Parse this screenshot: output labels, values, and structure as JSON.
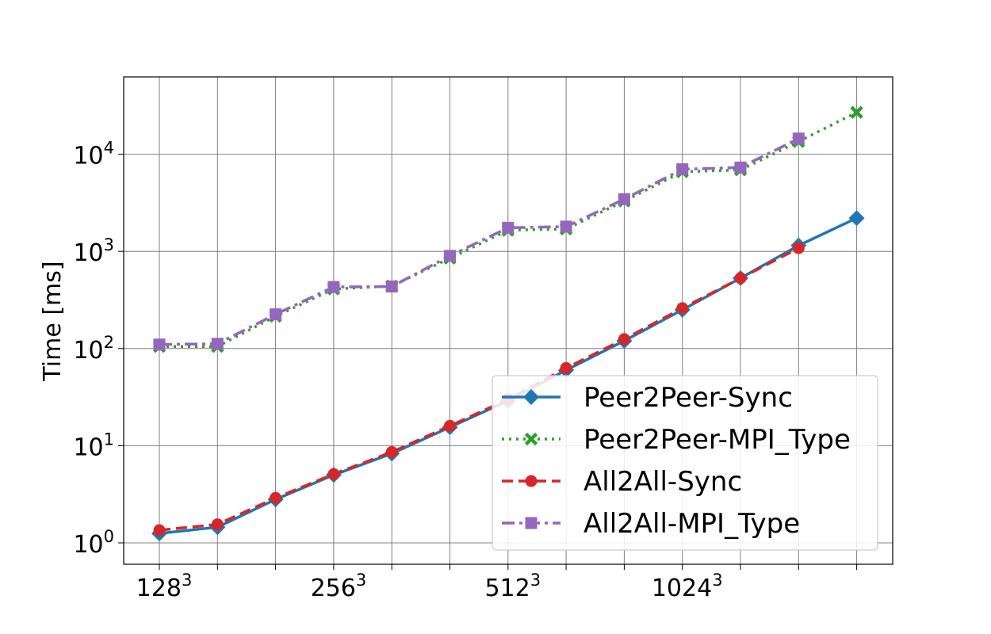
{
  "chart_data": {
    "type": "line",
    "title": "",
    "xlabel": "",
    "ylabel": "Time [ms]",
    "y_scale": "log",
    "ylim": [
      0.75,
      40000
    ],
    "grid": true,
    "legend_position": "lower-right",
    "x_ticks": [
      {
        "base": "128",
        "exp": "3"
      },
      {
        "base": "256",
        "exp": "3"
      },
      {
        "base": "512",
        "exp": "3"
      },
      {
        "base": "1024",
        "exp": "3"
      }
    ],
    "y_ticks": [
      {
        "base": "10",
        "exp": "0"
      },
      {
        "base": "10",
        "exp": "1"
      },
      {
        "base": "10",
        "exp": "2"
      },
      {
        "base": "10",
        "exp": "3"
      },
      {
        "base": "10",
        "exp": "4"
      }
    ],
    "x": [
      1,
      2,
      3,
      4,
      5,
      6,
      7,
      8,
      9,
      10,
      11,
      12,
      13
    ],
    "series": [
      {
        "name": "Peer2Peer-Sync",
        "color": "#1f77b4",
        "dash": "solid",
        "marker": "diamond",
        "values": [
          1.25,
          1.45,
          2.8,
          5.0,
          8.3,
          15.5,
          29,
          60,
          120,
          250,
          530,
          1150,
          2200
        ]
      },
      {
        "name": "Peer2Peer-MPI_Type",
        "color": "#2ca02c",
        "dash": "dotted",
        "marker": "x",
        "values": [
          105,
          105,
          215,
          410,
          440,
          850,
          1650,
          1700,
          3300,
          6600,
          6900,
          13500,
          27000
        ]
      },
      {
        "name": "All2All-Sync",
        "color": "#d62728",
        "dash": "dashed",
        "marker": "circle",
        "values": [
          1.35,
          1.55,
          2.9,
          5.1,
          8.6,
          16,
          30,
          63,
          125,
          260,
          530,
          1080,
          null
        ]
      },
      {
        "name": "All2All-MPI_Type",
        "color": "#9467bd",
        "dash": "dashdot",
        "marker": "square",
        "values": [
          110,
          112,
          225,
          430,
          435,
          900,
          1750,
          1800,
          3450,
          7000,
          7300,
          14500,
          null
        ]
      }
    ]
  }
}
